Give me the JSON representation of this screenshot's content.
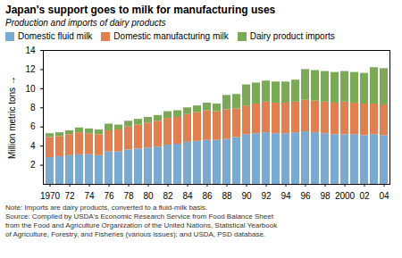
{
  "chart_data": {
    "type": "bar",
    "stacked": true,
    "title": "Japan's support goes to milk for manufacturing uses",
    "subtitle": "Production and imports of dairy products",
    "ylabel": "Million metric tons",
    "categories": [
      "1970",
      null,
      "72",
      null,
      "74",
      null,
      "76",
      null,
      "78",
      null,
      "80",
      null,
      "82",
      null,
      "84",
      null,
      "86",
      null,
      "88",
      null,
      "90",
      null,
      "92",
      null,
      "94",
      null,
      "96",
      null,
      "98",
      null,
      "2000",
      null,
      "02",
      null,
      "04"
    ],
    "series": [
      {
        "name": "Domestic fluid milk",
        "color": "#7aaad0",
        "values": [
          2.8,
          2.9,
          3.0,
          3.1,
          3.1,
          3.0,
          3.4,
          3.4,
          3.6,
          3.7,
          3.8,
          3.9,
          4.1,
          4.2,
          4.4,
          4.5,
          4.6,
          4.6,
          4.7,
          4.9,
          5.2,
          5.3,
          5.4,
          5.3,
          5.3,
          5.4,
          5.5,
          5.4,
          5.3,
          5.2,
          5.2,
          5.2,
          5.1,
          5.2,
          5.1
        ]
      },
      {
        "name": "Domestic manufacturing milk",
        "color": "#e08050",
        "values": [
          2.1,
          2.1,
          2.2,
          2.3,
          2.2,
          2.2,
          2.2,
          2.3,
          2.4,
          2.5,
          2.6,
          2.7,
          2.8,
          2.8,
          2.9,
          3.0,
          3.1,
          3.0,
          3.1,
          3.0,
          3.0,
          3.1,
          3.2,
          3.2,
          3.2,
          3.2,
          3.3,
          3.3,
          3.3,
          3.3,
          3.4,
          3.3,
          3.3,
          3.2,
          3.2
        ]
      },
      {
        "name": "Dairy product imports",
        "color": "#7aaa55",
        "values": [
          0.4,
          0.4,
          0.4,
          0.5,
          0.5,
          0.5,
          0.7,
          0.5,
          0.6,
          0.6,
          0.6,
          0.6,
          0.7,
          0.7,
          0.7,
          0.7,
          0.8,
          0.8,
          1.5,
          1.5,
          2.2,
          2.2,
          2.2,
          2.2,
          2.2,
          2.3,
          3.2,
          3.2,
          3.2,
          3.2,
          3.2,
          3.2,
          3.2,
          3.8,
          3.8
        ]
      }
    ],
    "ylim": [
      0,
      14
    ],
    "yticks": [
      2,
      4,
      6,
      8,
      10,
      12,
      14
    ],
    "grid": false,
    "legend": "upper left",
    "annotations": [
      "Note:  Imports are dairy products, converted to a fluid-milk basis.",
      "Source:  Compiled by USDA's Economic Research Service from Food Balance Sheet",
      "from the Food and Agriculture Organization of the United Nations, Statistical Yearbook",
      "of Agriculture, Forestry, and Fisheries (various issues); and USDA, PSD database."
    ]
  }
}
